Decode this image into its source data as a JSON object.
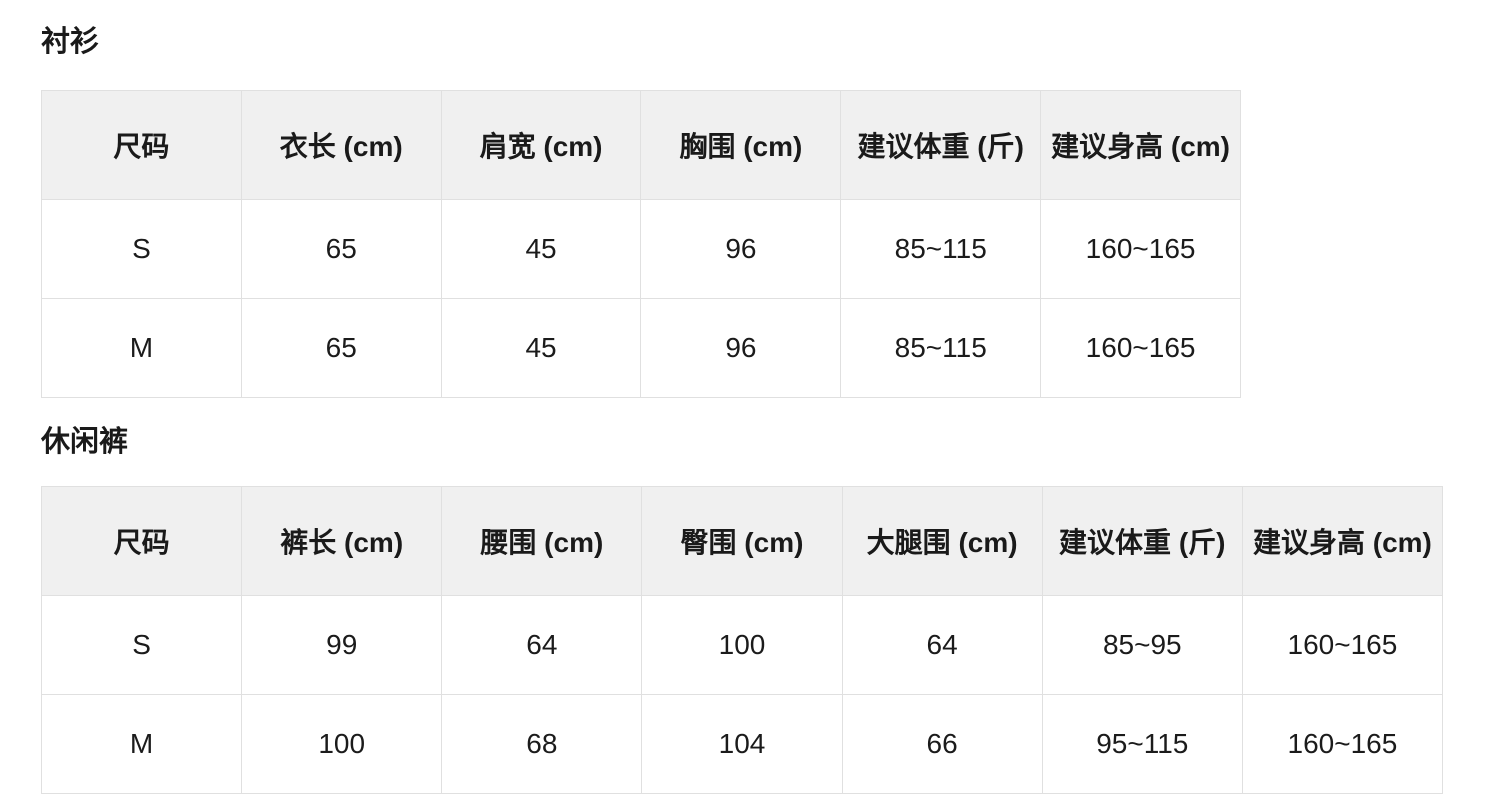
{
  "page": {
    "background": "#ffffff",
    "text_color": "#1b1b1b",
    "header_bg": "#f0f0f0",
    "border_color": "#e0e0e0"
  },
  "sections": [
    {
      "title": "衬衫",
      "columns": [
        "尺码",
        "衣长 (cm)",
        "肩宽 (cm)",
        "胸围 (cm)",
        "建议体重 (斤)",
        "建议身高 (cm)"
      ],
      "rows": [
        [
          "S",
          "65",
          "45",
          "96",
          "85~115",
          "160~165"
        ],
        [
          "M",
          "65",
          "45",
          "96",
          "85~115",
          "160~165"
        ]
      ]
    },
    {
      "title": "休闲裤",
      "columns": [
        "尺码",
        "裤长 (cm)",
        "腰围 (cm)",
        "臀围 (cm)",
        "大腿围 (cm)",
        "建议体重 (斤)",
        "建议身高 (cm)"
      ],
      "rows": [
        [
          "S",
          "99",
          "64",
          "100",
          "64",
          "85~95",
          "160~165"
        ],
        [
          "M",
          "100",
          "68",
          "104",
          "66",
          "95~115",
          "160~165"
        ]
      ]
    }
  ]
}
